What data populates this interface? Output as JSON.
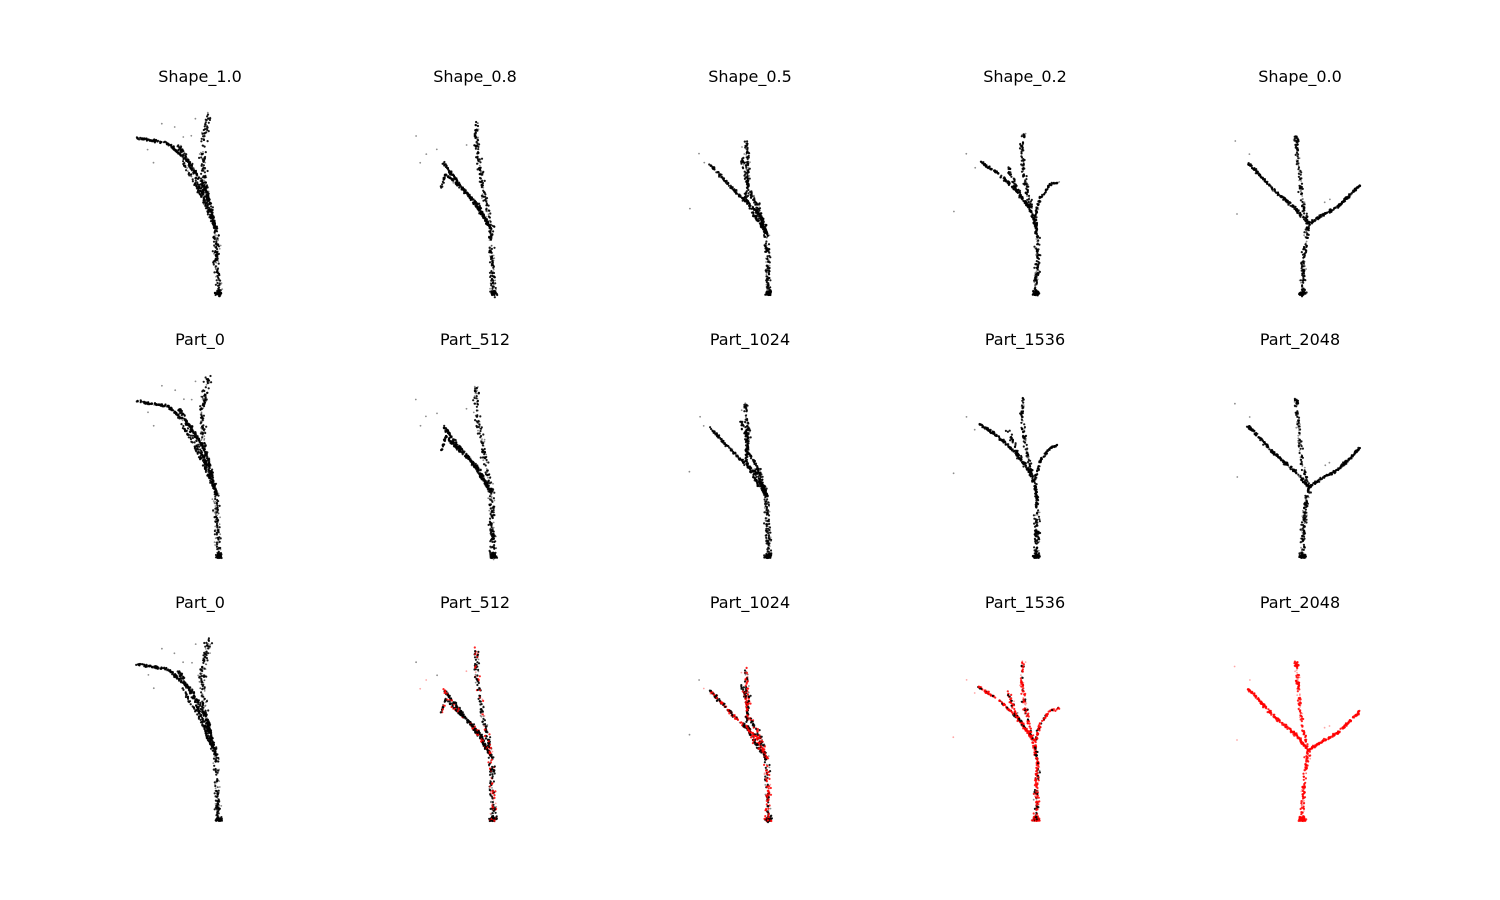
{
  "figure": {
    "background": "#ffffff",
    "grid_rows": 3,
    "grid_cols": 5
  },
  "chart_data": [
    {
      "type": "scatter",
      "title": "Shape_1.0",
      "shape": "t0",
      "red_fraction": 0
    },
    {
      "type": "scatter",
      "title": "Shape_0.8",
      "shape": "t0.2",
      "red_fraction": 0
    },
    {
      "type": "scatter",
      "title": "Shape_0.5",
      "shape": "t0.5",
      "red_fraction": 0
    },
    {
      "type": "scatter",
      "title": "Shape_0.2",
      "shape": "t0.8",
      "red_fraction": 0
    },
    {
      "type": "scatter",
      "title": "Shape_0.0",
      "shape": "t1",
      "red_fraction": 0
    },
    {
      "type": "scatter",
      "title": "Part_0",
      "shape": "p0",
      "red_fraction": 0
    },
    {
      "type": "scatter",
      "title": "Part_512",
      "shape": "p1",
      "red_fraction": 0
    },
    {
      "type": "scatter",
      "title": "Part_1024",
      "shape": "p2",
      "red_fraction": 0
    },
    {
      "type": "scatter",
      "title": "Part_1536",
      "shape": "p3",
      "red_fraction": 0
    },
    {
      "type": "scatter",
      "title": "Part_2048",
      "shape": "p4",
      "red_fraction": 0
    },
    {
      "type": "scatter",
      "title": "Part_0",
      "shape": "p0",
      "red_fraction": 0
    },
    {
      "type": "scatter",
      "title": "Part_512",
      "shape": "p1",
      "red_fraction": 0.25
    },
    {
      "type": "scatter",
      "title": "Part_1024",
      "shape": "p2",
      "red_fraction": 0.5
    },
    {
      "type": "scatter",
      "title": "Part_1536",
      "shape": "p3",
      "red_fraction": 0.75
    },
    {
      "type": "scatter",
      "title": "Part_2048",
      "shape": "p4",
      "red_fraction": 1
    }
  ],
  "colors": {
    "points": "#000000",
    "highlight": "#ff0000",
    "title": "#000000"
  }
}
